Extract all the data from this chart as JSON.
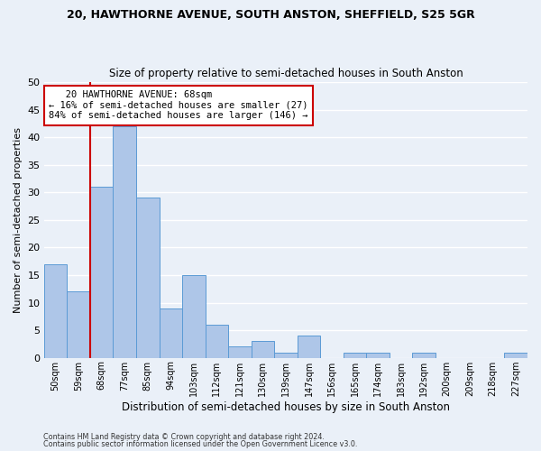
{
  "title1": "20, HAWTHORNE AVENUE, SOUTH ANSTON, SHEFFIELD, S25 5GR",
  "title2": "Size of property relative to semi-detached houses in South Anston",
  "xlabel": "Distribution of semi-detached houses by size in South Anston",
  "ylabel": "Number of semi-detached properties",
  "footer1": "Contains HM Land Registry data © Crown copyright and database right 2024.",
  "footer2": "Contains public sector information licensed under the Open Government Licence v3.0.",
  "categories": [
    "50sqm",
    "59sqm",
    "68sqm",
    "77sqm",
    "85sqm",
    "94sqm",
    "103sqm",
    "112sqm",
    "121sqm",
    "130sqm",
    "139sqm",
    "147sqm",
    "156sqm",
    "165sqm",
    "174sqm",
    "183sqm",
    "192sqm",
    "200sqm",
    "209sqm",
    "218sqm",
    "227sqm"
  ],
  "values": [
    17,
    12,
    31,
    42,
    29,
    9,
    15,
    6,
    2,
    3,
    1,
    4,
    0,
    1,
    1,
    0,
    1,
    0,
    0,
    0,
    1
  ],
  "bar_color": "#aec6e8",
  "bar_edge_color": "#5b9bd5",
  "highlight_index": 2,
  "highlight_line_color": "#cc0000",
  "annotation_line1": "   20 HAWTHORNE AVENUE: 68sqm",
  "annotation_line2": "← 16% of semi-detached houses are smaller (27)",
  "annotation_line3": "84% of semi-detached houses are larger (146) →",
  "annotation_box_color": "#ffffff",
  "annotation_box_edge": "#cc0000",
  "ylim": [
    0,
    50
  ],
  "yticks": [
    0,
    5,
    10,
    15,
    20,
    25,
    30,
    35,
    40,
    45,
    50
  ],
  "bg_color": "#eaf0f8",
  "grid_color": "#ffffff"
}
